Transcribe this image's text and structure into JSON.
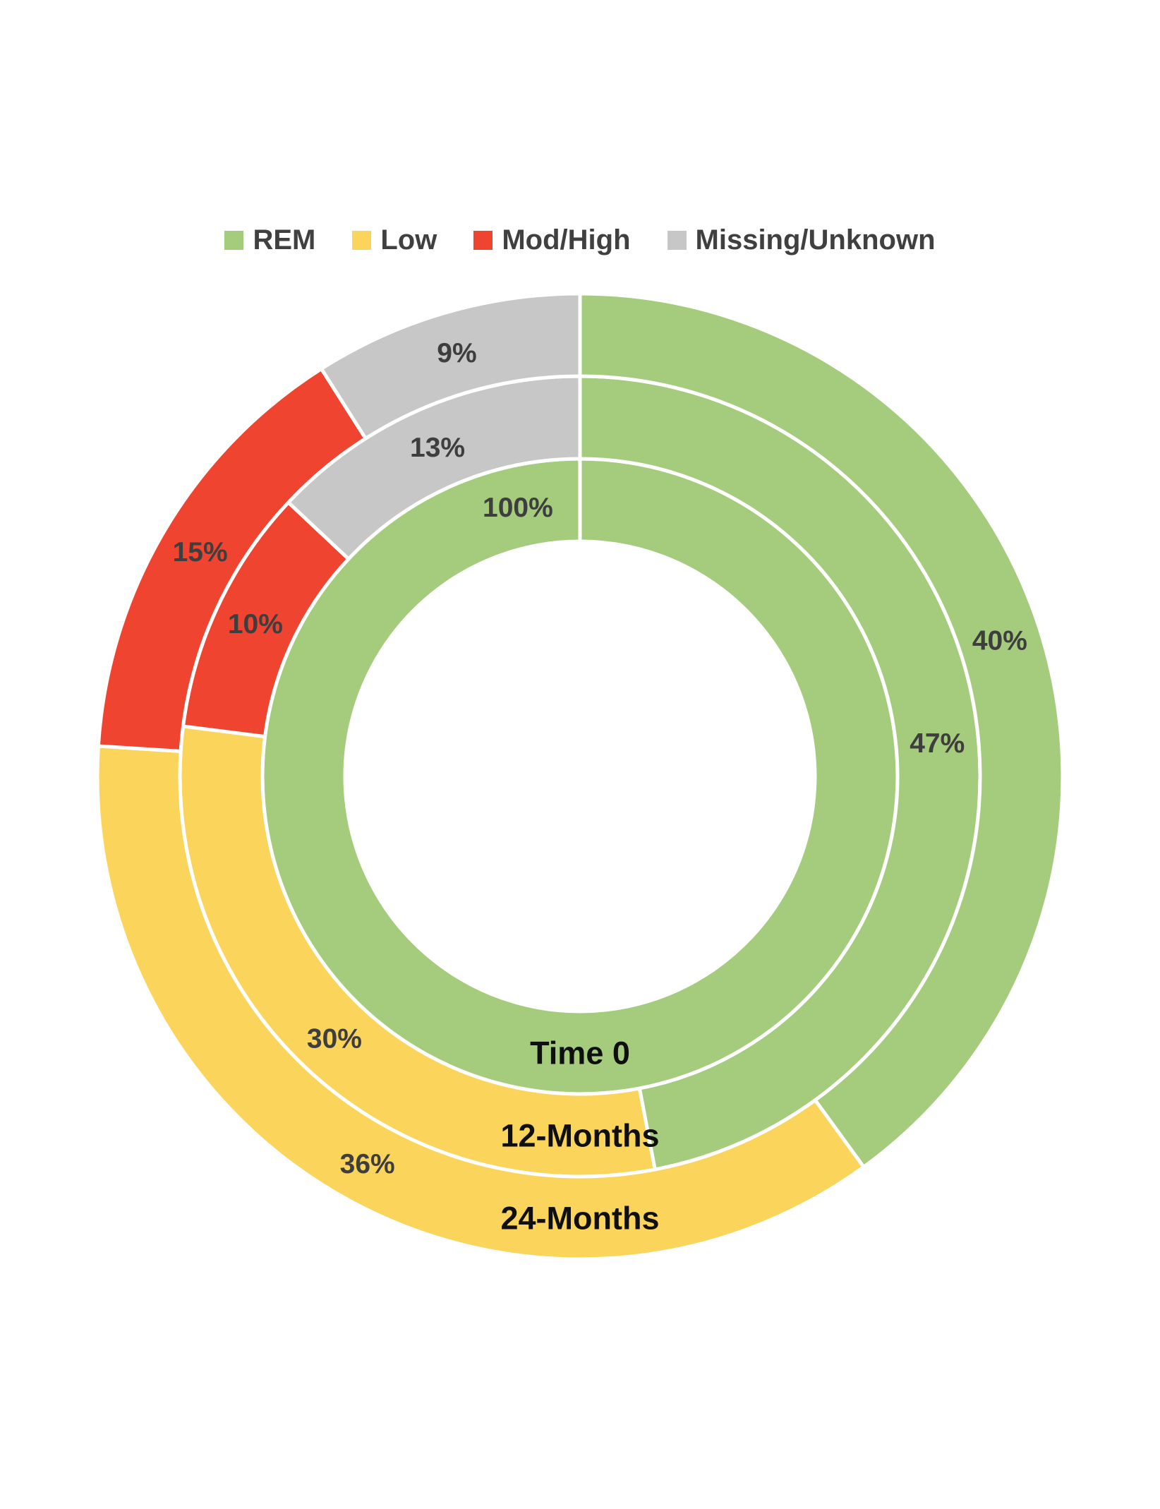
{
  "page": {
    "background_color": "#FFFFFF"
  },
  "chart_data": {
    "type": "pie",
    "subtype": "multi-ring-donut",
    "title": "",
    "legend_position": "top",
    "legend": [
      {
        "label": "REM",
        "color": "#A4CC7C"
      },
      {
        "label": "Low",
        "color": "#FBD45C"
      },
      {
        "label": "Mod/High",
        "color": "#EF4430"
      },
      {
        "label": "Missing/Unknown",
        "color": "#C7C7C7"
      }
    ],
    "rings": [
      {
        "name": "Time 0",
        "name_label_angle": 180,
        "segments": [
          {
            "category": "REM",
            "value": 100,
            "label": "100%",
            "label_angle_override": 347
          }
        ]
      },
      {
        "name": "12-Months",
        "name_label_angle": 180,
        "segments": [
          {
            "category": "REM",
            "value": 47,
            "label": "47%"
          },
          {
            "category": "Low",
            "value": 30,
            "label": "30%"
          },
          {
            "category": "Mod/High",
            "value": 10,
            "label": "10%"
          },
          {
            "category": "Missing/Unknown",
            "value": 13,
            "label": "13%"
          }
        ]
      },
      {
        "name": "24-Months",
        "name_label_angle": 180,
        "segments": [
          {
            "category": "REM",
            "value": 40,
            "label": "40%"
          },
          {
            "category": "Low",
            "value": 36,
            "label": "36%"
          },
          {
            "category": "Mod/High",
            "value": 15,
            "label": "15%"
          },
          {
            "category": "Missing/Unknown",
            "value": 9,
            "label": "9%"
          }
        ]
      }
    ],
    "label_text_color": "#3E3E3E",
    "ring_name_color": "#0F0F0F",
    "segment_border_color": "#FFFFFF"
  }
}
